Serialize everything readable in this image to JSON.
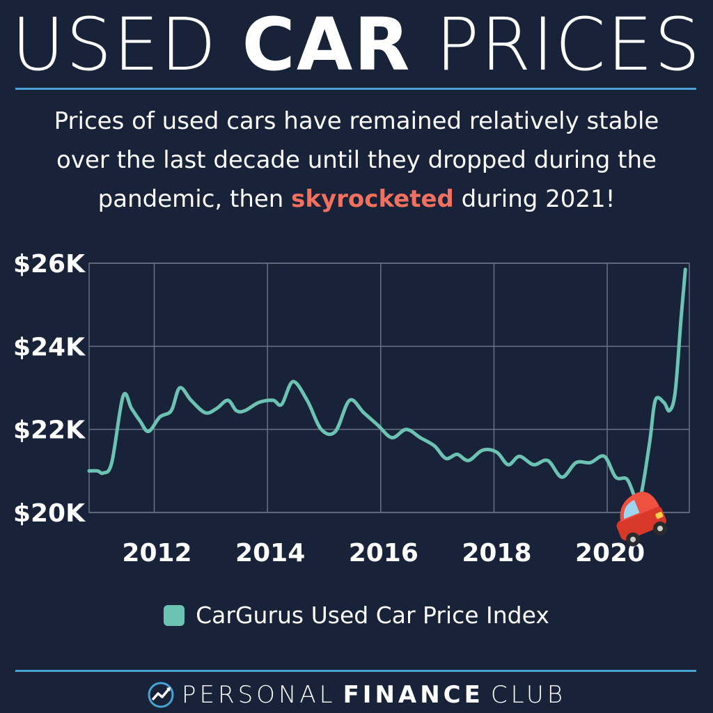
{
  "header": {
    "title_light_1": "USED ",
    "title_bold": "CAR",
    "title_light_2": " PRICES",
    "subtitle_part1": "Prices of used cars have remained relatively stable over the last decade until they dropped during the pandemic, then ",
    "subtitle_highlight": "skyrocketed",
    "subtitle_part2": " during 2021!"
  },
  "colors": {
    "background": "#18233a",
    "rule": "#4aa3d6",
    "line": "#6cc2b3",
    "highlight": "#f2705f",
    "grid": "#6b7284"
  },
  "chart_data": {
    "type": "line",
    "title": "",
    "xlabel": "",
    "ylabel": "",
    "x_ticks": [
      2012,
      2014,
      2016,
      2018,
      2020
    ],
    "y_ticks": [
      20000,
      22000,
      24000,
      26000
    ],
    "y_tick_labels": [
      "$20K",
      "$22K",
      "$24K",
      "$26K"
    ],
    "xlim": [
      2010.85,
      2021.45
    ],
    "ylim": [
      20000,
      26000
    ],
    "grid": true,
    "legend": "bottom",
    "icon": "car-icon",
    "series": [
      {
        "name": "CarGurus Used Car Price Index",
        "x": [
          2010.85,
          2011.0,
          2011.1,
          2011.25,
          2011.45,
          2011.6,
          2011.75,
          2011.9,
          2012.1,
          2012.3,
          2012.45,
          2012.65,
          2012.9,
          2013.1,
          2013.3,
          2013.45,
          2013.6,
          2013.85,
          2014.1,
          2014.25,
          2014.45,
          2014.7,
          2014.95,
          2015.2,
          2015.45,
          2015.7,
          2015.95,
          2016.2,
          2016.45,
          2016.7,
          2016.95,
          2017.15,
          2017.35,
          2017.55,
          2017.8,
          2018.05,
          2018.25,
          2018.45,
          2018.7,
          2018.95,
          2019.2,
          2019.45,
          2019.7,
          2019.95,
          2020.15,
          2020.35,
          2020.5,
          2020.6,
          2020.75,
          2020.85,
          2021.0,
          2021.1,
          2021.2,
          2021.3,
          2021.38
        ],
        "values": [
          21000,
          21000,
          20950,
          21200,
          22800,
          22500,
          22200,
          21950,
          22300,
          22450,
          23000,
          22700,
          22400,
          22500,
          22700,
          22450,
          22450,
          22650,
          22700,
          22600,
          23150,
          22700,
          22000,
          21950,
          22700,
          22400,
          22100,
          21800,
          22000,
          21800,
          21600,
          21300,
          21400,
          21250,
          21500,
          21450,
          21150,
          21350,
          21150,
          21250,
          20850,
          21200,
          21200,
          21350,
          20850,
          20800,
          20350,
          20450,
          21700,
          22700,
          22650,
          22450,
          22900,
          24600,
          25850
        ]
      }
    ]
  },
  "legend": {
    "label": "CarGurus Used Car Price Index"
  },
  "brand": {
    "light_1": "PERSONAL",
    "bold": "FINANCE",
    "light_2": "CLUB"
  }
}
